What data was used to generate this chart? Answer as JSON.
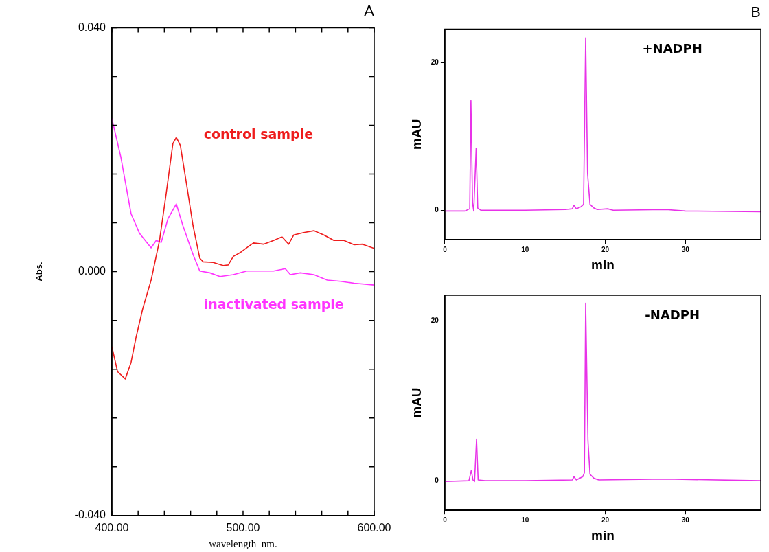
{
  "chart_data": [
    {
      "type": "line",
      "title": "A",
      "xlabel": "wavelength  nm.",
      "ylabel": "Abs.",
      "xlim": [
        400,
        600
      ],
      "ylim": [
        -0.04,
        0.04
      ],
      "xticks": [
        {
          "value": 400,
          "label": "400.00"
        },
        {
          "value": 420,
          "label": null
        },
        {
          "value": 440,
          "label": null
        },
        {
          "value": 460,
          "label": null
        },
        {
          "value": 480,
          "label": null
        },
        {
          "value": 500,
          "label": "500.00"
        },
        {
          "value": 520,
          "label": null
        },
        {
          "value": 540,
          "label": null
        },
        {
          "value": 560,
          "label": null
        },
        {
          "value": 580,
          "label": null
        },
        {
          "value": 600,
          "label": "600.00"
        }
      ],
      "yticks": [
        {
          "value": -0.04,
          "label": "-0.040"
        },
        {
          "value": -0.032,
          "label": null
        },
        {
          "value": -0.024,
          "label": null
        },
        {
          "value": -0.016,
          "label": null
        },
        {
          "value": -0.008,
          "label": null
        },
        {
          "value": 0,
          "label": "0.000"
        },
        {
          "value": 0.008,
          "label": null
        },
        {
          "value": 0.016,
          "label": null
        },
        {
          "value": 0.024,
          "label": null
        },
        {
          "value": 0.032,
          "label": null
        },
        {
          "value": 0.04,
          "label": "0.040"
        }
      ],
      "series": [
        {
          "name": "control sample",
          "color": "#ee1c1c",
          "x": [
            400,
            404.3,
            410.2,
            414.6,
            418.4,
            423.5,
            429.9,
            436.3,
            441.4,
            446.5,
            449.1,
            452.2,
            456.8,
            461.9,
            467,
            469.6,
            477.2,
            484.9,
            488.7,
            492.6,
            497.7,
            502.8,
            507.9,
            515.6,
            523.3,
            529.7,
            534.8,
            538.6,
            546.3,
            554,
            561.6,
            569.3,
            577,
            584.7,
            591,
            600
          ],
          "values": [
            -0.0123,
            -0.0164,
            -0.0176,
            -0.0149,
            -0.0108,
            -0.0061,
            -0.0014,
            0.0051,
            0.0128,
            0.021,
            0.022,
            0.0207,
            0.0145,
            0.0075,
            0.0022,
            0.0016,
            0.0015,
            0.001,
            0.0011,
            0.0025,
            0.0031,
            0.0039,
            0.0047,
            0.0045,
            0.0051,
            0.0057,
            0.0045,
            0.006,
            0.0064,
            0.0067,
            0.006,
            0.0051,
            0.0051,
            0.0044,
            0.0045,
            0.0038
          ]
        },
        {
          "name": "inactivated sample",
          "color": "#ff33ff",
          "x": [
            400,
            406.9,
            414.6,
            421,
            429.9,
            433.8,
            437.6,
            442.8,
            449.1,
            454.2,
            461.9,
            467,
            474.7,
            482.4,
            492.6,
            502.8,
            513,
            523.3,
            532.2,
            536.1,
            543.7,
            554,
            564.2,
            574.4,
            584.7,
            600
          ],
          "values": [
            0.0251,
            0.0187,
            0.0095,
            0.0063,
            0.0039,
            0.0051,
            0.0048,
            0.0087,
            0.0111,
            0.0075,
            0.0028,
            0.0001,
            -0.0002,
            -0.0008,
            -0.0005,
            0.0001,
            0.0001,
            0.0001,
            0.0005,
            -0.0005,
            -0.0002,
            -0.0005,
            -0.0014,
            -0.0016,
            -0.0019,
            -0.0022
          ]
        }
      ]
    },
    {
      "type": "line",
      "title": "B",
      "xlabel": "min",
      "ylabel": "mAU",
      "xlim": [
        0,
        39.4
      ],
      "ylim": [
        -4,
        24.6
      ],
      "xticks": [
        {
          "value": 0,
          "label": "0"
        },
        10,
        20,
        30
      ],
      "yticks": [
        {
          "value": 0,
          "label": "0"
        },
        20
      ],
      "annotations": [
        "+NADPH"
      ],
      "series": [
        {
          "color": "#e832e8",
          "x": [
            0,
            2.5,
            3.1,
            3.25,
            3.45,
            3.6,
            3.9,
            4.1,
            4.5,
            10,
            15,
            15.9,
            16.1,
            16.4,
            17,
            17.3,
            17.56,
            17.8,
            18.1,
            18.6,
            19,
            20.3,
            21,
            27.6,
            30,
            39.4
          ],
          "values": [
            -0.1,
            -0.1,
            0.2,
            14.9,
            1,
            -0.1,
            8.4,
            0.3,
            0,
            0,
            0.1,
            0.2,
            0.7,
            0.2,
            0.5,
            0.8,
            23.4,
            5,
            0.8,
            0.3,
            0.1,
            0.2,
            0,
            0.1,
            -0.1,
            -0.2
          ]
        }
      ]
    },
    {
      "type": "line",
      "xlabel": "min",
      "ylabel": "mAU",
      "xlim": [
        0,
        39.4
      ],
      "ylim": [
        -3.7,
        23.2
      ],
      "xticks": [
        {
          "value": 0,
          "label": "0"
        },
        10,
        20,
        30
      ],
      "yticks": [
        {
          "value": 0,
          "label": "0"
        },
        20
      ],
      "annotations": [
        "-NADPH"
      ],
      "series": [
        {
          "color": "#e832e8",
          "x": [
            0,
            3,
            3.3,
            3.5,
            3.7,
            3.95,
            4.15,
            5,
            10,
            15.9,
            16.1,
            16.4,
            17.2,
            17.4,
            17.56,
            17.85,
            18.1,
            18.6,
            19.2,
            27.6,
            39.4
          ],
          "values": [
            -0.1,
            0,
            1.3,
            0.1,
            -0.1,
            5.2,
            0.1,
            0,
            0,
            0.1,
            0.5,
            0.1,
            0.5,
            1,
            22.2,
            5,
            0.8,
            0.3,
            0.1,
            0.2,
            0
          ]
        }
      ]
    }
  ]
}
